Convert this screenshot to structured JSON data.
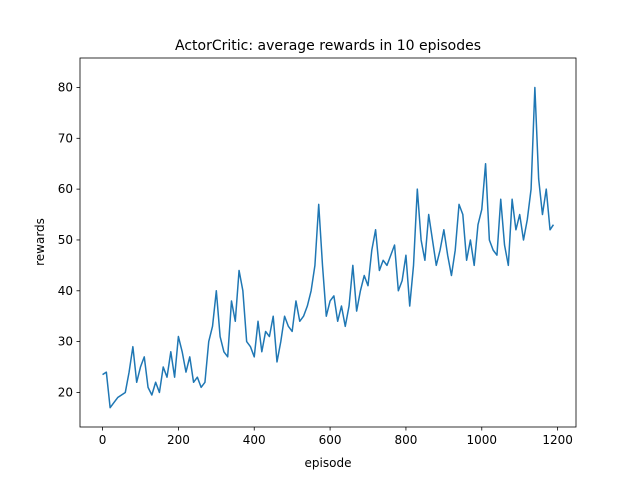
{
  "chart_data": {
    "type": "line",
    "title": "ActorCritic: average rewards in 10 episodes",
    "xlabel": "episode",
    "ylabel": "rewards",
    "x": [
      0,
      10,
      20,
      30,
      40,
      50,
      60,
      70,
      80,
      90,
      100,
      110,
      120,
      130,
      140,
      150,
      160,
      170,
      180,
      190,
      200,
      210,
      220,
      230,
      240,
      250,
      260,
      270,
      280,
      290,
      300,
      310,
      320,
      330,
      340,
      350,
      360,
      370,
      380,
      390,
      400,
      410,
      420,
      430,
      440,
      450,
      460,
      470,
      480,
      490,
      500,
      510,
      520,
      530,
      540,
      550,
      560,
      570,
      580,
      590,
      600,
      610,
      620,
      630,
      640,
      650,
      660,
      670,
      680,
      690,
      700,
      710,
      720,
      730,
      740,
      750,
      760,
      770,
      780,
      790,
      800,
      810,
      820,
      830,
      840,
      850,
      860,
      870,
      880,
      890,
      900,
      910,
      920,
      930,
      940,
      950,
      960,
      970,
      980,
      990,
      1000,
      1010,
      1020,
      1030,
      1040,
      1050,
      1060,
      1070,
      1080,
      1090,
      1100,
      1110,
      1120,
      1130,
      1140,
      1150,
      1160,
      1170,
      1180,
      1189
    ],
    "series": [
      {
        "name": "rewards",
        "color": "#1f77b4",
        "values": [
          23.5,
          24,
          17,
          18,
          19,
          19.5,
          20,
          24,
          29,
          22,
          25,
          27,
          21,
          19.5,
          22,
          20,
          25,
          23,
          28,
          23,
          31,
          28,
          24,
          27,
          22,
          23,
          21,
          22,
          30,
          33,
          40,
          31,
          28,
          27,
          38,
          34,
          44,
          40,
          30,
          29,
          27,
          34,
          28,
          32,
          31,
          35,
          26,
          30,
          35,
          33,
          32,
          38,
          34,
          35,
          37,
          40,
          45,
          57,
          45,
          35,
          38,
          39,
          34,
          37,
          33,
          37,
          45,
          36,
          40,
          43,
          41,
          48,
          52,
          44,
          46,
          45,
          47,
          49,
          40,
          42,
          47,
          37,
          45,
          60,
          50,
          46,
          55,
          50,
          45,
          48,
          52,
          47,
          43,
          48,
          57,
          55,
          46,
          50,
          45,
          53,
          56,
          65,
          50,
          48,
          47,
          58,
          49,
          45,
          58,
          52,
          55,
          50,
          54,
          60,
          80,
          62,
          55,
          60,
          52,
          53
        ]
      }
    ],
    "xlim": [
      -59.45,
      1248.45
    ],
    "ylim": [
      13.2,
      85.8
    ],
    "xticks": [
      0,
      200,
      400,
      600,
      800,
      1000,
      1200
    ],
    "yticks": [
      20,
      30,
      40,
      50,
      60,
      70,
      80
    ]
  }
}
